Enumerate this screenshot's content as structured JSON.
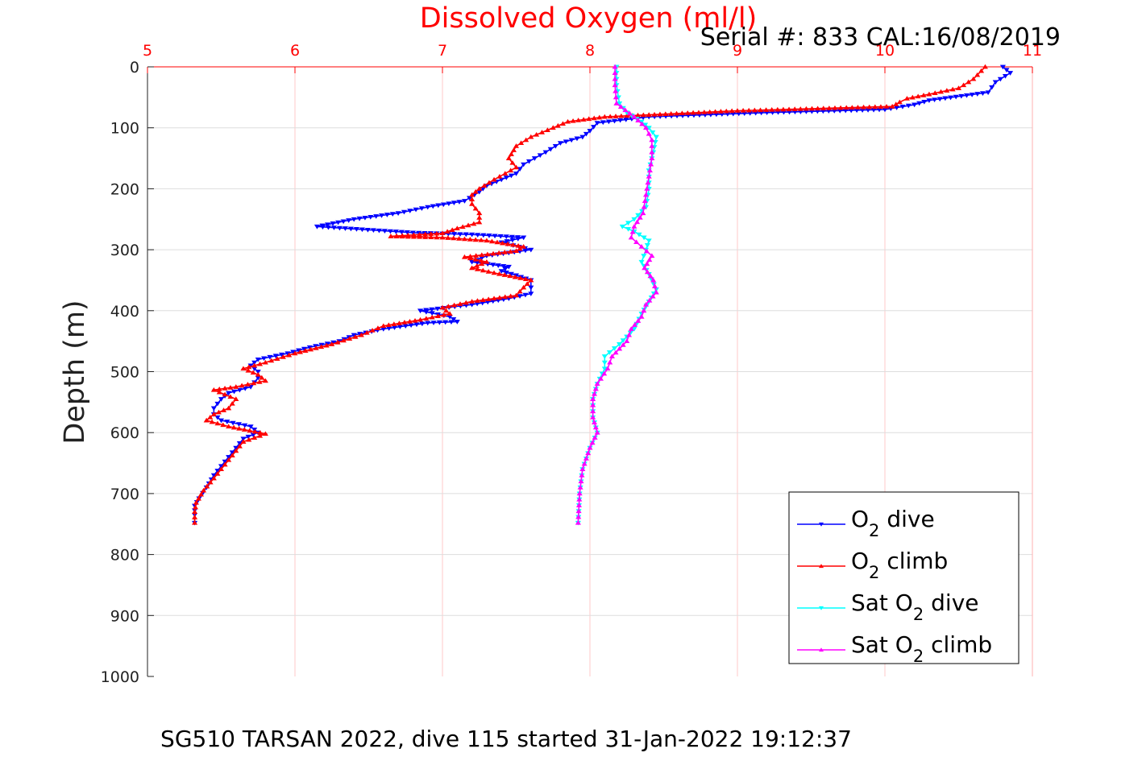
{
  "chart_data": {
    "type": "line",
    "title": "Dissolved Oxygen (ml/l)",
    "subtitle": "Serial #: 833  CAL:16/08/2019",
    "ylabel": "Depth (m)",
    "footer": "SG510 TARSAN 2022, dive 115 started 31-Jan-2022 19:12:37",
    "xlim": [
      5,
      11
    ],
    "ylim": [
      0,
      1000
    ],
    "y_reversed": true,
    "x_axis_position": "top",
    "xticks": [
      5,
      6,
      7,
      8,
      9,
      10,
      11
    ],
    "yticks": [
      0,
      100,
      200,
      300,
      400,
      500,
      600,
      700,
      800,
      900,
      1000
    ],
    "x_tick_labels": [
      "5",
      "6",
      "7",
      "8",
      "9",
      "10",
      "11"
    ],
    "y_tick_labels": [
      "0",
      "100",
      "200",
      "300",
      "400",
      "500",
      "600",
      "700",
      "800",
      "900",
      "1000"
    ],
    "grid": true,
    "grid_color": "#ffc8c8",
    "legend_position": "bottom-right",
    "series": [
      {
        "name": "O2 dive",
        "color": "#0000ff",
        "marker": "triangle-down",
        "points": [
          [
            10.8,
            0
          ],
          [
            10.85,
            10
          ],
          [
            10.75,
            25
          ],
          [
            10.7,
            42
          ],
          [
            10.3,
            55
          ],
          [
            10.2,
            62
          ],
          [
            10.0,
            70
          ],
          [
            9.2,
            75
          ],
          [
            8.4,
            82
          ],
          [
            8.05,
            92
          ],
          [
            8.0,
            105
          ],
          [
            7.95,
            115
          ],
          [
            7.8,
            125
          ],
          [
            7.7,
            140
          ],
          [
            7.55,
            160
          ],
          [
            7.5,
            175
          ],
          [
            7.4,
            185
          ],
          [
            7.3,
            195
          ],
          [
            7.25,
            205
          ],
          [
            7.15,
            220
          ],
          [
            6.9,
            230
          ],
          [
            6.7,
            240
          ],
          [
            6.4,
            250
          ],
          [
            6.15,
            262
          ],
          [
            6.8,
            272
          ],
          [
            7.2,
            275
          ],
          [
            7.55,
            280
          ],
          [
            7.4,
            288
          ],
          [
            7.6,
            300
          ],
          [
            7.3,
            310
          ],
          [
            7.2,
            320
          ],
          [
            7.45,
            328
          ],
          [
            7.4,
            335
          ],
          [
            7.5,
            342
          ],
          [
            7.6,
            350
          ],
          [
            7.6,
            362
          ],
          [
            7.6,
            372
          ],
          [
            7.45,
            380
          ],
          [
            7.2,
            390
          ],
          [
            6.85,
            400
          ],
          [
            7.05,
            410
          ],
          [
            7.1,
            418
          ],
          [
            6.9,
            420
          ],
          [
            6.6,
            430
          ],
          [
            6.4,
            440
          ],
          [
            6.3,
            450
          ],
          [
            6.1,
            460
          ],
          [
            5.95,
            470
          ],
          [
            5.75,
            480
          ],
          [
            5.7,
            490
          ],
          [
            5.75,
            500
          ],
          [
            5.75,
            510
          ],
          [
            5.7,
            525
          ],
          [
            5.55,
            535
          ],
          [
            5.5,
            545
          ],
          [
            5.45,
            560
          ],
          [
            5.45,
            570
          ],
          [
            5.5,
            580
          ],
          [
            5.7,
            590
          ],
          [
            5.75,
            600
          ],
          [
            5.65,
            610
          ],
          [
            5.6,
            625
          ],
          [
            5.55,
            640
          ],
          [
            5.5,
            655
          ],
          [
            5.45,
            670
          ],
          [
            5.4,
            690
          ],
          [
            5.35,
            708
          ],
          [
            5.32,
            720
          ],
          [
            5.32,
            735
          ],
          [
            5.32,
            748
          ]
        ]
      },
      {
        "name": "O2 climb",
        "color": "#ff0000",
        "marker": "triangle-up",
        "points": [
          [
            10.68,
            0
          ],
          [
            10.6,
            20
          ],
          [
            10.5,
            35
          ],
          [
            10.3,
            45
          ],
          [
            10.15,
            52
          ],
          [
            10.1,
            58
          ],
          [
            10.05,
            65
          ],
          [
            9.0,
            72
          ],
          [
            8.1,
            82
          ],
          [
            7.85,
            90
          ],
          [
            7.75,
            100
          ],
          [
            7.6,
            115
          ],
          [
            7.5,
            130
          ],
          [
            7.45,
            150
          ],
          [
            7.5,
            165
          ],
          [
            7.35,
            185
          ],
          [
            7.25,
            200
          ],
          [
            7.2,
            210
          ],
          [
            7.2,
            225
          ],
          [
            7.25,
            240
          ],
          [
            7.25,
            255
          ],
          [
            7.1,
            265
          ],
          [
            7.0,
            273
          ],
          [
            6.65,
            278
          ],
          [
            7.0,
            280
          ],
          [
            7.3,
            285
          ],
          [
            7.55,
            295
          ],
          [
            7.5,
            302
          ],
          [
            7.15,
            312
          ],
          [
            7.3,
            320
          ],
          [
            7.2,
            330
          ],
          [
            7.35,
            338
          ],
          [
            7.6,
            350
          ],
          [
            7.55,
            362
          ],
          [
            7.5,
            375
          ],
          [
            7.2,
            385
          ],
          [
            7.0,
            395
          ],
          [
            7.05,
            405
          ],
          [
            6.85,
            415
          ],
          [
            6.6,
            425
          ],
          [
            6.45,
            440
          ],
          [
            6.25,
            455
          ],
          [
            6.0,
            470
          ],
          [
            5.8,
            485
          ],
          [
            5.65,
            495
          ],
          [
            5.75,
            505
          ],
          [
            5.8,
            515
          ],
          [
            5.6,
            525
          ],
          [
            5.45,
            530
          ],
          [
            5.6,
            545
          ],
          [
            5.55,
            560
          ],
          [
            5.45,
            570
          ],
          [
            5.4,
            580
          ],
          [
            5.55,
            590
          ],
          [
            5.8,
            602
          ],
          [
            5.65,
            615
          ],
          [
            5.6,
            630
          ],
          [
            5.55,
            645
          ],
          [
            5.5,
            660
          ],
          [
            5.45,
            675
          ],
          [
            5.38,
            695
          ],
          [
            5.33,
            715
          ],
          [
            5.32,
            730
          ],
          [
            5.32,
            748
          ]
        ]
      },
      {
        "name": "Sat O2 dive",
        "color": "#00ffff",
        "marker": "triangle-down",
        "points": [
          [
            8.18,
            0
          ],
          [
            8.18,
            30
          ],
          [
            8.2,
            60
          ],
          [
            8.25,
            75
          ],
          [
            8.35,
            90
          ],
          [
            8.4,
            100
          ],
          [
            8.45,
            115
          ],
          [
            8.43,
            140
          ],
          [
            8.4,
            170
          ],
          [
            8.4,
            200
          ],
          [
            8.38,
            230
          ],
          [
            8.3,
            250
          ],
          [
            8.22,
            262
          ],
          [
            8.3,
            270
          ],
          [
            8.4,
            285
          ],
          [
            8.38,
            300
          ],
          [
            8.35,
            320
          ],
          [
            8.4,
            340
          ],
          [
            8.45,
            365
          ],
          [
            8.4,
            385
          ],
          [
            8.35,
            405
          ],
          [
            8.3,
            430
          ],
          [
            8.2,
            455
          ],
          [
            8.1,
            475
          ],
          [
            8.1,
            495
          ],
          [
            8.05,
            520
          ],
          [
            8.02,
            545
          ],
          [
            8.02,
            575
          ],
          [
            8.05,
            600
          ],
          [
            8.0,
            625
          ],
          [
            7.95,
            660
          ],
          [
            7.93,
            700
          ],
          [
            7.92,
            748
          ]
        ]
      },
      {
        "name": "Sat O2 climb",
        "color": "#ff00ff",
        "marker": "triangle-up",
        "points": [
          [
            8.17,
            0
          ],
          [
            8.17,
            30
          ],
          [
            8.18,
            60
          ],
          [
            8.3,
            82
          ],
          [
            8.38,
            100
          ],
          [
            8.42,
            120
          ],
          [
            8.42,
            150
          ],
          [
            8.4,
            180
          ],
          [
            8.38,
            210
          ],
          [
            8.36,
            240
          ],
          [
            8.3,
            262
          ],
          [
            8.28,
            280
          ],
          [
            8.35,
            295
          ],
          [
            8.42,
            310
          ],
          [
            8.37,
            330
          ],
          [
            8.43,
            350
          ],
          [
            8.45,
            370
          ],
          [
            8.38,
            390
          ],
          [
            8.35,
            410
          ],
          [
            8.28,
            430
          ],
          [
            8.25,
            450
          ],
          [
            8.15,
            475
          ],
          [
            8.12,
            495
          ],
          [
            8.05,
            520
          ],
          [
            8.02,
            545
          ],
          [
            8.02,
            575
          ],
          [
            8.05,
            600
          ],
          [
            8.0,
            625
          ],
          [
            7.95,
            660
          ],
          [
            7.93,
            700
          ],
          [
            7.92,
            748
          ]
        ]
      }
    ]
  },
  "legend": [
    {
      "prefix": "O",
      "sub": "2",
      "suffix": " dive",
      "color": "#0000ff",
      "marker": "triangle-down"
    },
    {
      "prefix": "O",
      "sub": "2",
      "suffix": " climb",
      "color": "#ff0000",
      "marker": "triangle-up"
    },
    {
      "prefix": "Sat O",
      "sub": "2",
      "suffix": " dive",
      "color": "#00ffff",
      "marker": "triangle-down"
    },
    {
      "prefix": "Sat O",
      "sub": "2",
      "suffix": " climb",
      "color": "#ff00ff",
      "marker": "triangle-up"
    }
  ]
}
